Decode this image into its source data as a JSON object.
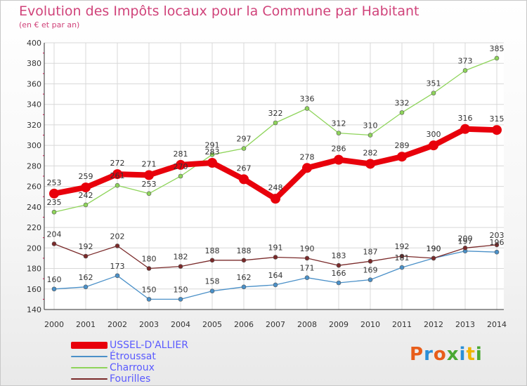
{
  "header": {
    "title": "Evolution des Impôts locaux pour la Commune par Habitant",
    "subtitle": "(en € et par an)"
  },
  "logo": {
    "text": "Proxiti",
    "colors": [
      "#e85d1a",
      "#2a8fd8",
      "#e85d1a",
      "#4aa832",
      "#2a8fd8",
      "#f0b400",
      "#4aa832"
    ]
  },
  "chart_data": {
    "type": "line",
    "x": [
      "2000",
      "2001",
      "2002",
      "2003",
      "2004",
      "2005",
      "2006",
      "2007",
      "2008",
      "2009",
      "2010",
      "2011",
      "2012",
      "2013",
      "2014"
    ],
    "ylim": [
      140,
      400
    ],
    "yticks": [
      "140",
      "160",
      "180",
      "200",
      "220",
      "240",
      "260",
      "280",
      "300",
      "320",
      "340",
      "360",
      "380",
      "400"
    ],
    "grid": true,
    "legend_position": "bottom-left",
    "series": [
      {
        "name": "USSEL-D'ALLIER",
        "color": "#e8000b",
        "values": [
          253,
          259,
          272,
          271,
          281,
          283,
          267,
          248,
          278,
          286,
          282,
          289,
          300,
          316,
          315
        ]
      },
      {
        "name": "Étroussat",
        "color": "#4a90c8",
        "values": [
          160,
          162,
          173,
          150,
          150,
          158,
          162,
          164,
          171,
          166,
          169,
          181,
          190,
          197,
          196
        ]
      },
      {
        "name": "Charroux",
        "color": "#8ed45a",
        "values": [
          235,
          242,
          261,
          253,
          270,
          291,
          297,
          322,
          336,
          312,
          310,
          332,
          351,
          373,
          385
        ]
      },
      {
        "name": "Fourilles",
        "color": "#7a2a2a",
        "values": [
          204,
          192,
          202,
          180,
          182,
          188,
          188,
          191,
          190,
          183,
          187,
          192,
          190,
          200,
          203
        ]
      }
    ]
  }
}
